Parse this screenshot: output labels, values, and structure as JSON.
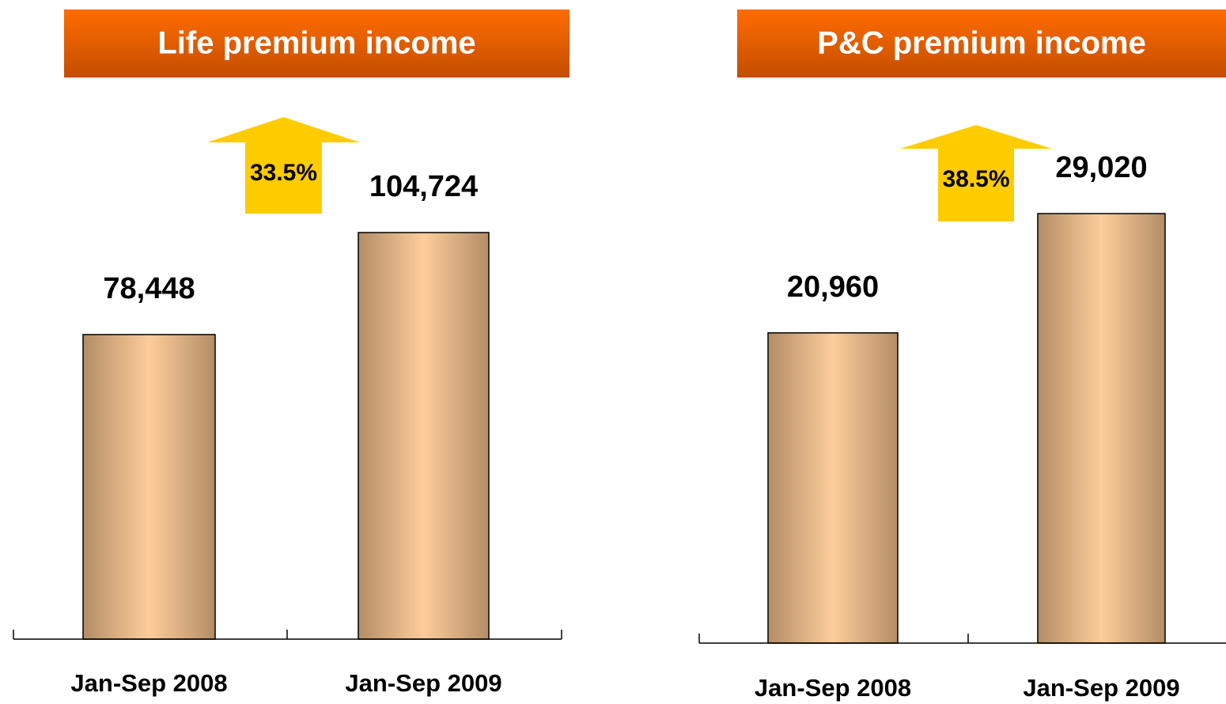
{
  "chart_data": [
    {
      "type": "bar",
      "title": "Life premium income",
      "categories": [
        "Jan-Sep 2008",
        "Jan-Sep 2009"
      ],
      "values": [
        78448,
        104724
      ],
      "value_labels": [
        "78,448",
        "104,724"
      ],
      "annotation": "33.5%"
    },
    {
      "type": "bar",
      "title": "P&C premium income",
      "categories": [
        "Jan-Sep 2008",
        "Jan-Sep 2009"
      ],
      "values": [
        20960,
        29020
      ],
      "value_labels": [
        "20,960",
        "29,020"
      ],
      "annotation": "38.5%"
    }
  ]
}
